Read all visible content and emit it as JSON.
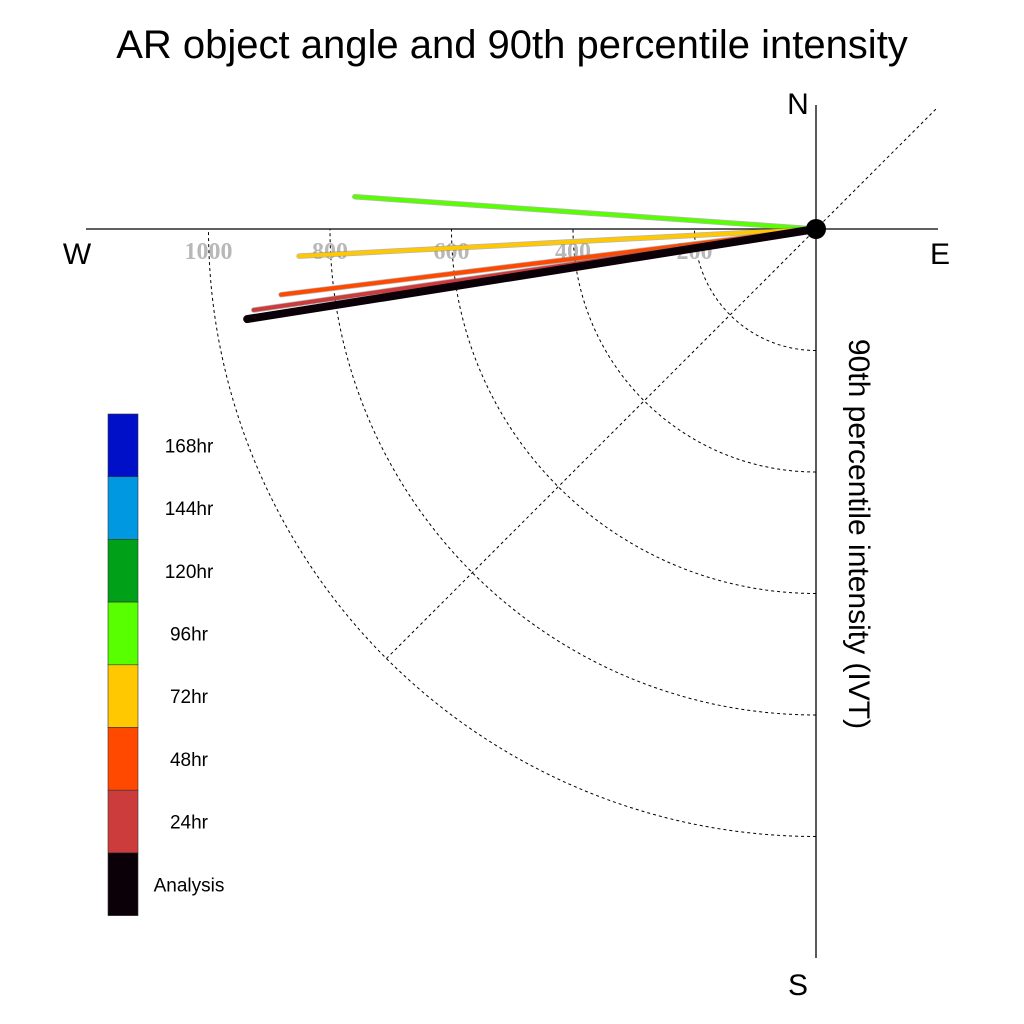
{
  "chart_data": {
    "type": "polar-line",
    "title": "AR object angle and 90th percentile intensity",
    "radial_label": "90th percentile intensity (IVT)",
    "compass": {
      "north": "N",
      "south": "S",
      "east": "E",
      "west": "W"
    },
    "radial_ticks": [
      200,
      400,
      600,
      800,
      1000
    ],
    "radial_tick_labels": [
      "200",
      "400",
      "600",
      "800",
      "1000"
    ],
    "radial_max": 1000,
    "quadrant": "southwest",
    "grid": true,
    "legend_position": "left",
    "legend": [
      {
        "label": "168hr",
        "color": "#0010c8"
      },
      {
        "label": "144hr",
        "color": "#0098e0"
      },
      {
        "label": "120hr",
        "color": "#00a018"
      },
      {
        "label": "96hr",
        "color": "#58ff00"
      },
      {
        "label": "72hr",
        "color": "#ffc800"
      },
      {
        "label": "48hr",
        "color": "#ff4800"
      },
      {
        "label": "24hr",
        "color": "#cc3c3c"
      },
      {
        "label": "Analysis",
        "color": "#0c0008"
      }
    ],
    "series": [
      {
        "name": "96hr",
        "color": "#58ff00",
        "direction_deg_below_west": -4.0,
        "intensity": 761
      },
      {
        "name": "72hr",
        "color": "#ffc800",
        "direction_deg_below_west": 3.0,
        "intensity": 852
      },
      {
        "name": "48hr",
        "color": "#ff4800",
        "direction_deg_below_west": 7.0,
        "intensity": 887
      },
      {
        "name": "24hr",
        "color": "#cc3c3c",
        "direction_deg_below_west": 8.2,
        "intensity": 935
      },
      {
        "name": "Analysis",
        "color": "#0c0008",
        "direction_deg_below_west": 9.0,
        "intensity": 948
      }
    ]
  }
}
